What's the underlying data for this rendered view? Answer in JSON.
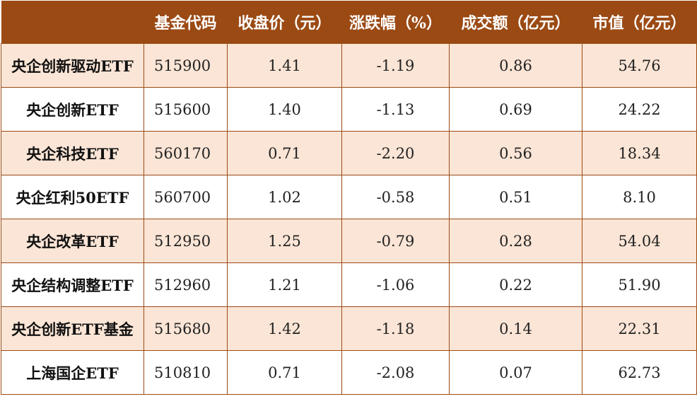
{
  "chart_data": {
    "type": "table",
    "columns": [
      "",
      "基金代码",
      "收盘价（元）",
      "涨跌幅（%）",
      "成交额（亿元）",
      "市值（亿元）"
    ],
    "rows": [
      [
        "央企创新驱动ETF",
        "515900",
        "1.41",
        "-1.19",
        "0.86",
        "54.76"
      ],
      [
        "央企创新ETF",
        "515600",
        "1.40",
        "-1.13",
        "0.69",
        "24.22"
      ],
      [
        "央企科技ETF",
        "560170",
        "0.71",
        "-2.20",
        "0.56",
        "18.34"
      ],
      [
        "央企红利50ETF",
        "560700",
        "1.02",
        "-0.58",
        "0.51",
        "8.10"
      ],
      [
        "央企改革ETF",
        "512950",
        "1.25",
        "-0.79",
        "0.28",
        "54.04"
      ],
      [
        "央企结构调整ETF",
        "512960",
        "1.21",
        "-1.06",
        "0.22",
        "51.90"
      ],
      [
        "央企创新ETF基金",
        "515680",
        "1.42",
        "-1.18",
        "0.14",
        "22.31"
      ],
      [
        "上海国企ETF",
        "510810",
        "0.71",
        "-2.08",
        "0.07",
        "62.73"
      ]
    ]
  },
  "colors": {
    "header_bg": "#9b4a14",
    "header_text": "#ffffff",
    "stripe_bg": "#fbe5d6",
    "border": "#9b4a14"
  }
}
